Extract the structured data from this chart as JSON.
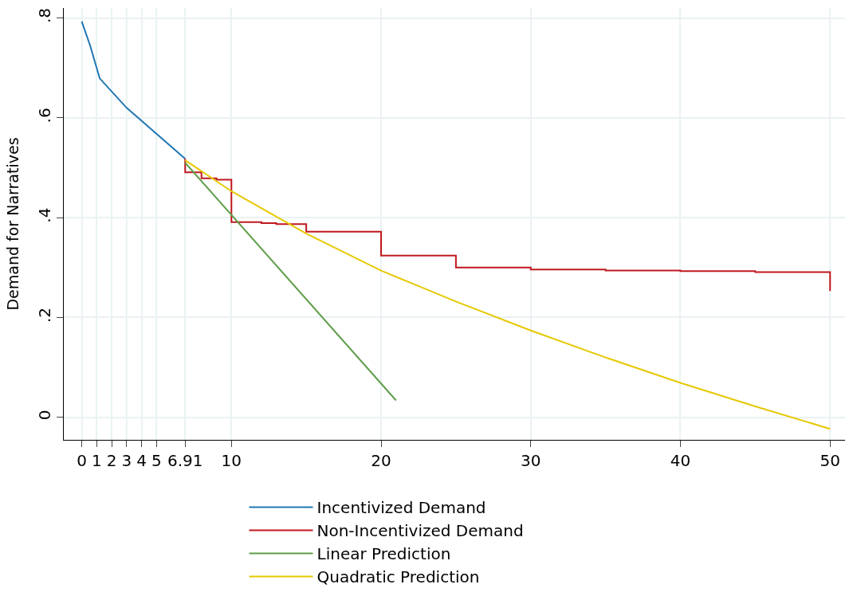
{
  "chart_data": {
    "type": "line",
    "ylabel": "Demand for Narratives",
    "x": [
      0,
      0.58,
      1.2,
      3,
      6.91
    ],
    "xlim": [
      -1.2,
      51
    ],
    "xticks": [
      0,
      1,
      2,
      3,
      4,
      5,
      6.91,
      10,
      20,
      30,
      40,
      50
    ],
    "ylim": [
      -0.045,
      0.82
    ],
    "yticks": [
      {
        "value": 0,
        "label": "0"
      },
      {
        "value": 0.2,
        "label": ".2"
      },
      {
        "value": 0.4,
        "label": ".4"
      },
      {
        "value": 0.6,
        "label": ".6"
      },
      {
        "value": 0.8,
        "label": ".8"
      }
    ],
    "grid": true,
    "legend": "bottom",
    "line_style": "solid",
    "marker": "none",
    "series": [
      {
        "name": "Incentivized Demand",
        "color": "#1f77b4",
        "values": [
          0.793,
          0.743,
          0.679,
          0.62,
          0.518
        ]
      },
      {
        "name": "Non-Incentivized Demand",
        "color": "#c0181f",
        "type": "step",
        "x": [
          6.91,
          6.91,
          8,
          9,
          10,
          12,
          13,
          15,
          20,
          25,
          30,
          35,
          40,
          45,
          50,
          50
        ],
        "values": [
          0.518,
          0.491,
          0.479,
          0.476,
          0.391,
          0.389,
          0.387,
          0.372,
          0.324,
          0.3,
          0.296,
          0.294,
          0.293,
          0.291,
          0.29,
          0.253
        ]
      },
      {
        "name": "Linear Prediction",
        "color": "#5f9e4a",
        "x": [
          6.91,
          21
        ],
        "values": [
          0.51,
          0.034
        ]
      },
      {
        "name": "Quadratic Prediction",
        "color": "#e6c800",
        "x": [
          6.91,
          10,
          15,
          20,
          25,
          30,
          35,
          40,
          45,
          50
        ],
        "values": [
          0.515,
          0.453,
          0.368,
          0.294,
          0.232,
          0.174,
          0.12,
          0.069,
          0.022,
          -0.023
        ]
      }
    ]
  }
}
